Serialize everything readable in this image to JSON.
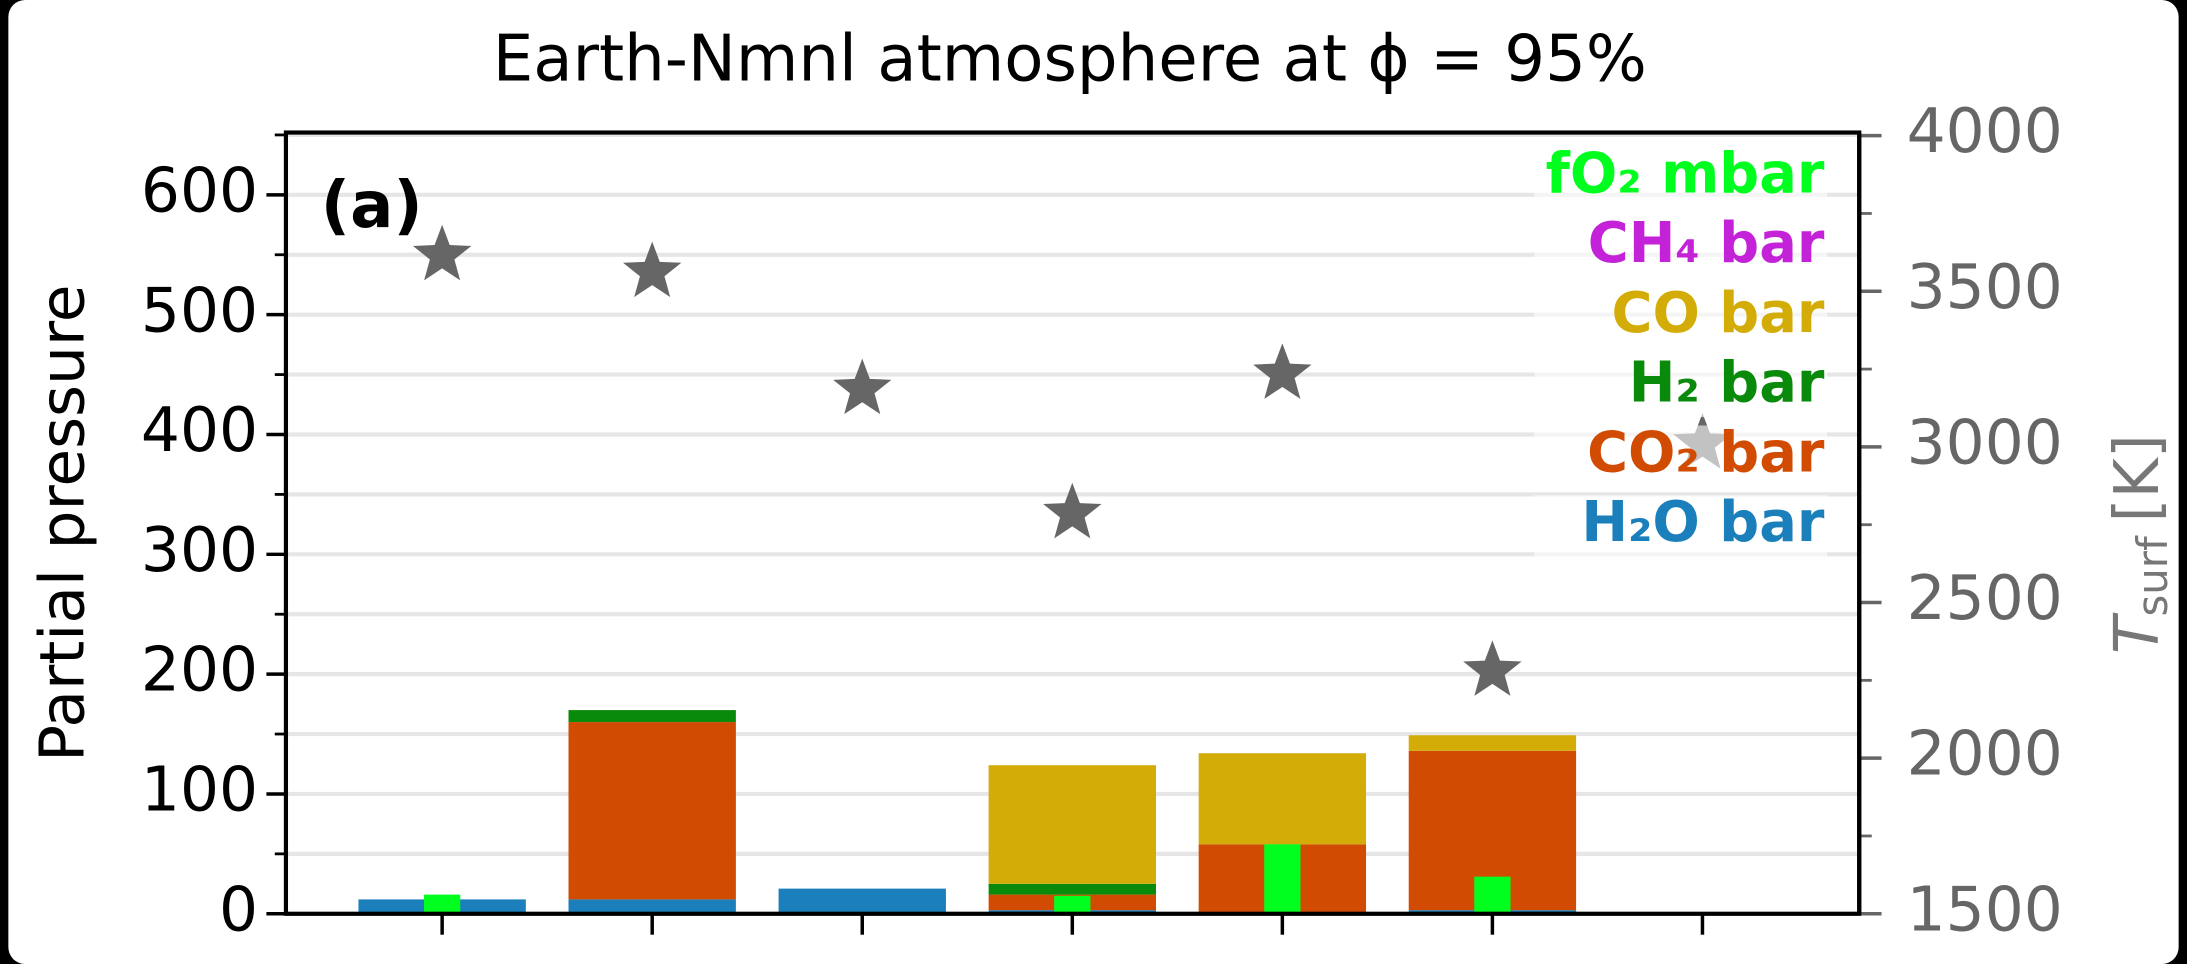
{
  "chart_data": {
    "type": "bar",
    "title": "Earth-Nmnl atmosphere at ϕ = 95%",
    "annotation": "(a)",
    "y_label": "Partial pressure",
    "y2_label": [
      "T",
      "surf",
      "[K]"
    ],
    "categories": [
      null,
      null,
      null,
      null,
      null,
      null,
      null
    ],
    "ylim": [
      0,
      652
    ],
    "yticks": [
      0,
      100,
      200,
      300,
      400,
      500,
      600
    ],
    "yminorticks": [
      50,
      150,
      250,
      350,
      450,
      550,
      650
    ],
    "y2lim": [
      1500,
      4010
    ],
    "y2ticks": [
      1500,
      2000,
      2500,
      3000,
      3500,
      4000
    ],
    "y2minorticks": [
      1750,
      2250,
      2750,
      3250,
      3750
    ],
    "grid": true,
    "legend": "upper right",
    "series": [
      {
        "name": "H₂O bar",
        "type": "bar",
        "color": "#1a7fba",
        "values": [
          12,
          12,
          21,
          3,
          1,
          3,
          0
        ]
      },
      {
        "name": "CO₂ bar",
        "type": "bar",
        "color": "#d24b03",
        "values": [
          0,
          148,
          0,
          13,
          57,
          133,
          0
        ]
      },
      {
        "name": "H₂ bar",
        "type": "bar",
        "color": "#0a8a0a",
        "values": [
          0,
          10,
          0,
          9,
          0,
          0,
          0
        ]
      },
      {
        "name": "CO bar",
        "type": "bar",
        "color": "#d3ac07",
        "values": [
          0,
          0,
          0,
          99,
          76,
          13,
          0
        ]
      },
      {
        "name": "CH₄ bar",
        "type": "bar",
        "color": "#c422d8",
        "values": [
          0,
          0,
          0,
          0,
          0,
          0,
          0
        ]
      },
      {
        "name": "fO₂ mbar",
        "type": "overlay",
        "color": "#00ff1e",
        "values": [
          16,
          0,
          0,
          15,
          58,
          31,
          0
        ]
      },
      {
        "type": "scatter",
        "axis": "y2",
        "color": "#666666",
        "values": [
          3615,
          3561,
          3185,
          2786,
          3234,
          2280,
          3010
        ]
      }
    ]
  }
}
